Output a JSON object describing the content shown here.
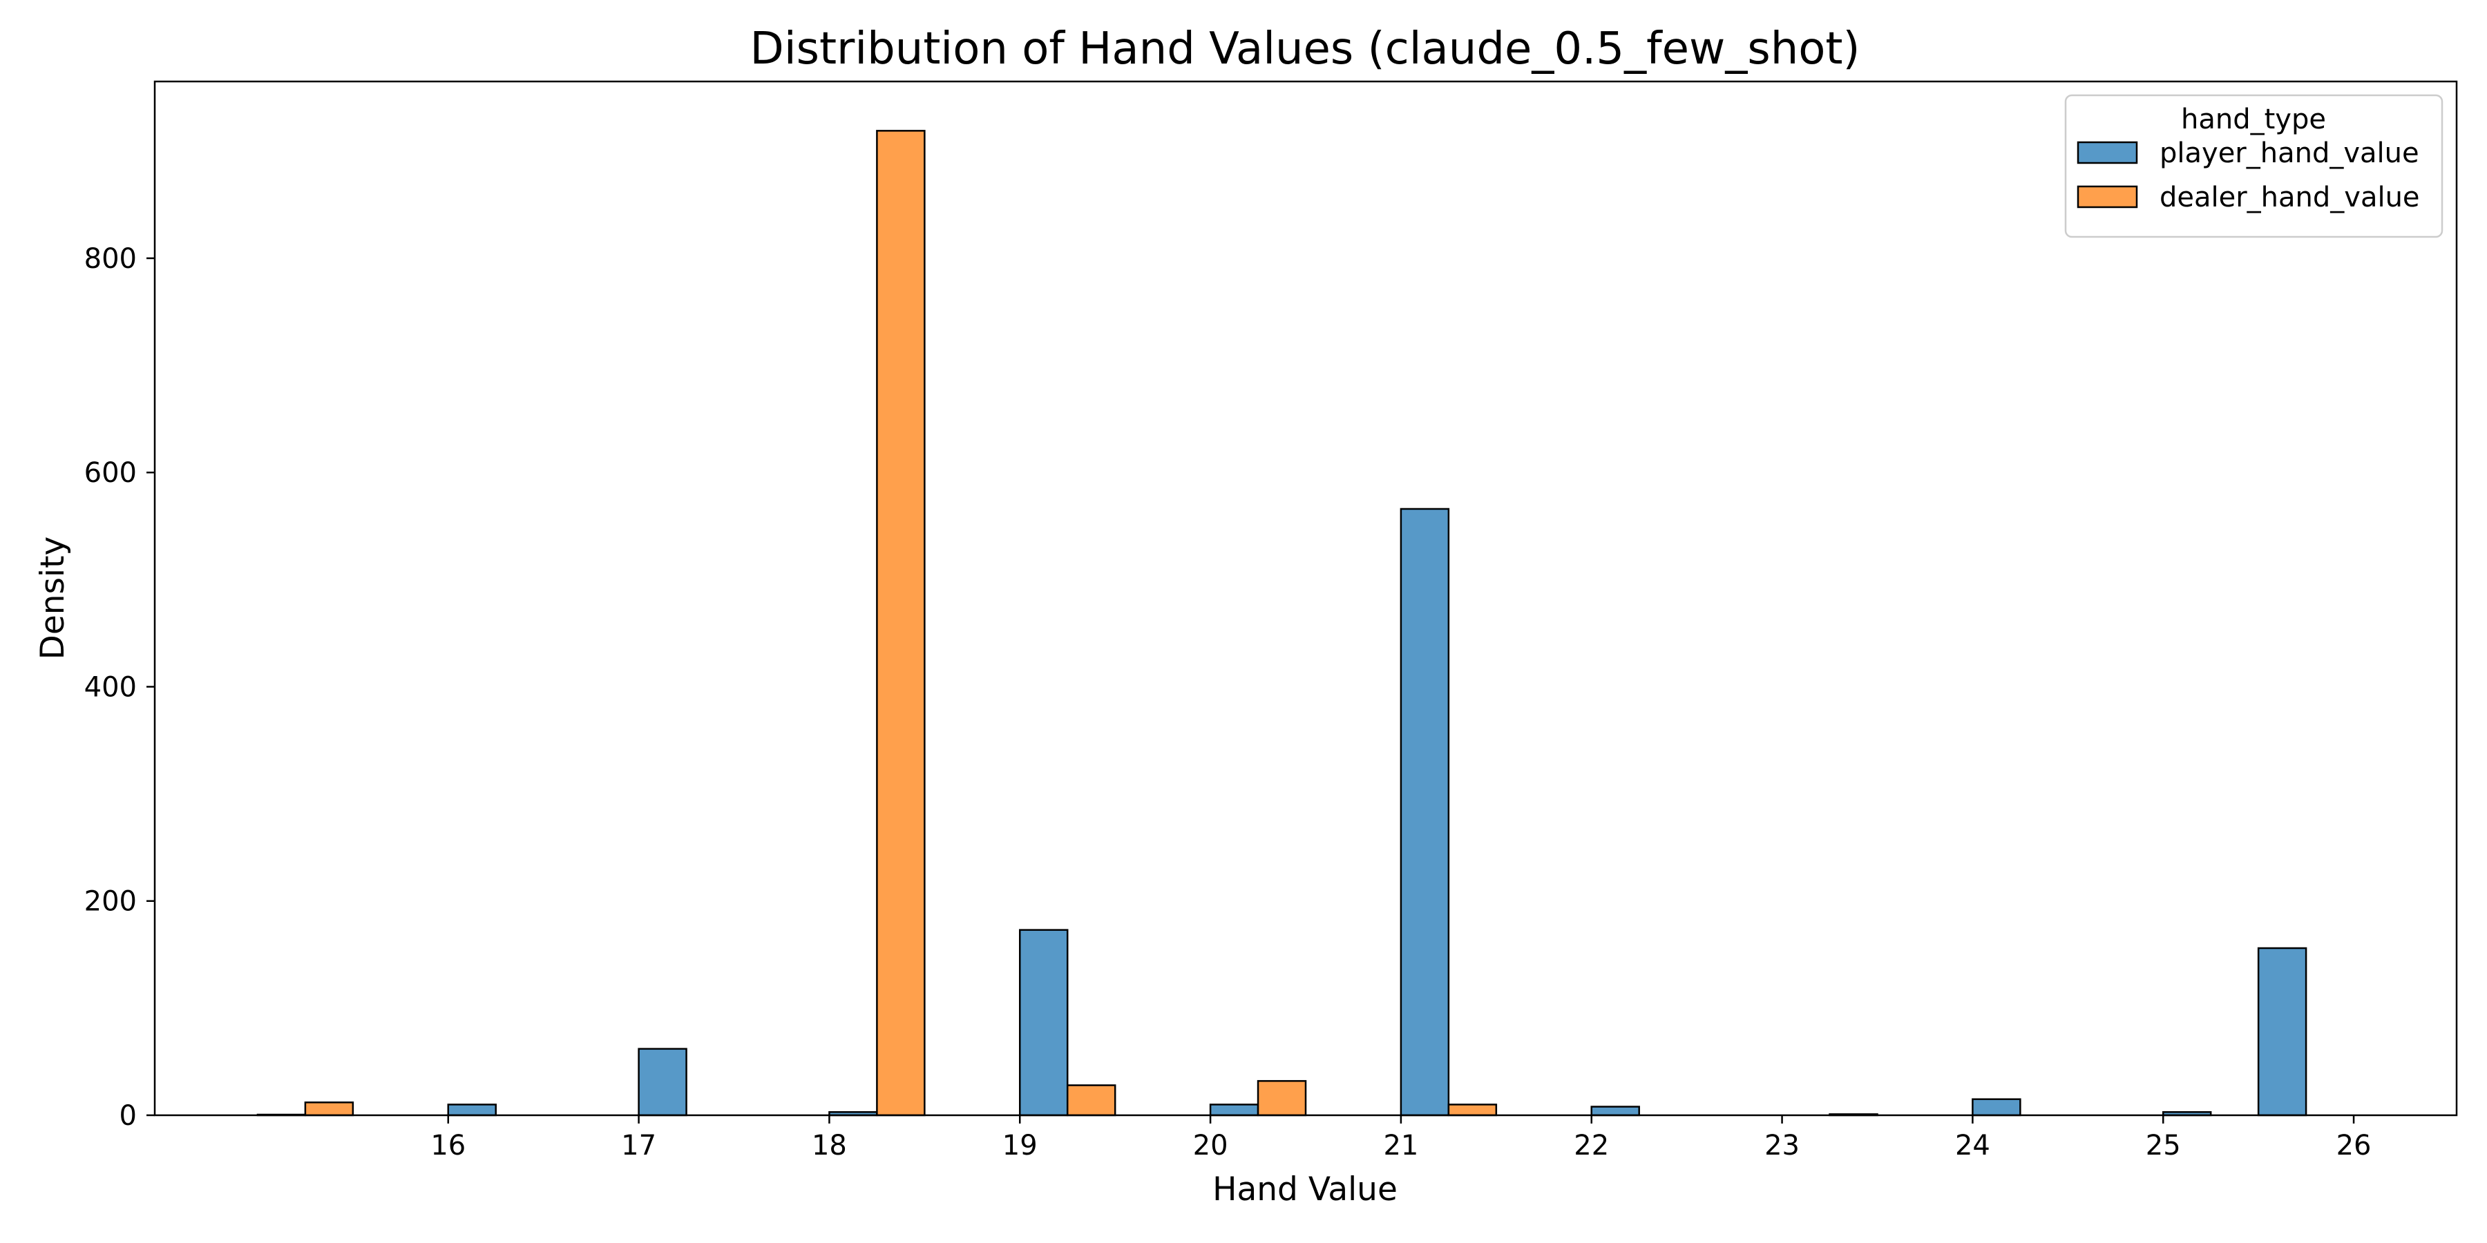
{
  "chart_data": {
    "type": "bar",
    "title": "Distribution of Hand Values (claude_0.5_few_shot)",
    "xlabel": "Hand Value",
    "ylabel": "Density",
    "xlim": [
      14.46,
      26.54
    ],
    "ylim": [
      0,
      965
    ],
    "xticks": [
      16,
      17,
      18,
      19,
      20,
      21,
      22,
      23,
      24,
      25,
      26
    ],
    "yticks": [
      0,
      200,
      400,
      600,
      800
    ],
    "grid": false,
    "legend": {
      "title": "hand_type",
      "position": "top-right"
    },
    "bin_width": 0.25,
    "series": [
      {
        "name": "player_hand_value",
        "color": "#5799c8",
        "bins": [
          {
            "x": 15.0,
            "value": 0.6
          },
          {
            "x": 16.0,
            "value": 10
          },
          {
            "x": 17.0,
            "value": 62
          },
          {
            "x": 18.0,
            "value": 3
          },
          {
            "x": 19.0,
            "value": 173
          },
          {
            "x": 20.0,
            "value": 10
          },
          {
            "x": 21.0,
            "value": 566
          },
          {
            "x": 22.0,
            "value": 8
          },
          {
            "x": 23.25,
            "value": 1
          },
          {
            "x": 24.0,
            "value": 15
          },
          {
            "x": 25.0,
            "value": 3
          },
          {
            "x": 25.5,
            "value": 156
          }
        ]
      },
      {
        "name": "dealer_hand_value",
        "color": "#ffa04c",
        "bins": [
          {
            "x": 15.25,
            "value": 12
          },
          {
            "x": 18.25,
            "value": 919
          },
          {
            "x": 19.25,
            "value": 28
          },
          {
            "x": 20.25,
            "value": 32
          },
          {
            "x": 21.25,
            "value": 10
          }
        ]
      }
    ]
  }
}
